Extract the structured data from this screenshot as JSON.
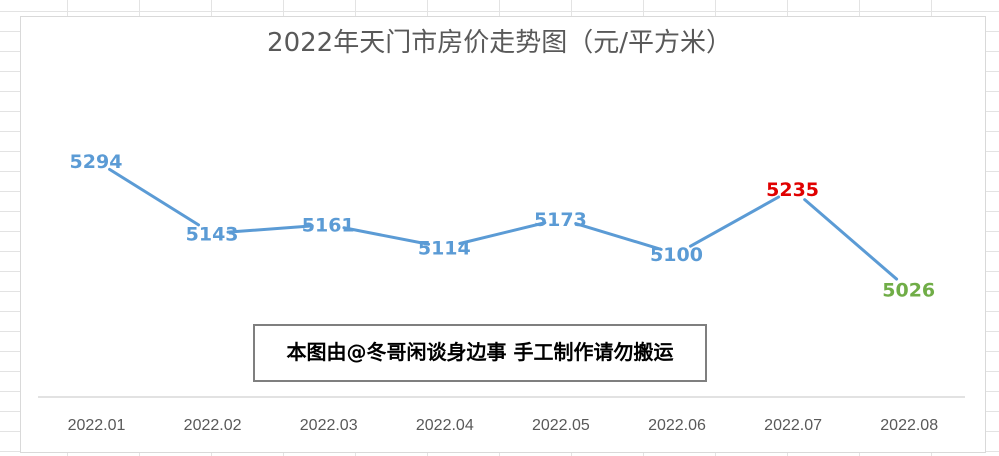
{
  "chart_data": {
    "type": "line",
    "title": "2022年天门市房价走势图（元/平方米）",
    "categories": [
      "2022.01",
      "2022.02",
      "2022.03",
      "2022.04",
      "2022.05",
      "2022.06",
      "2022.07",
      "2022.08"
    ],
    "series": [
      {
        "values": [
          5294,
          5143,
          5161,
          5114,
          5173,
          5100,
          5235,
          5026
        ]
      }
    ],
    "data_labels": [
      "5294",
      "5143",
      "5161",
      "5114",
      "5173",
      "5100",
      "5235",
      "5026"
    ],
    "ylim": [
      4900,
      5400
    ],
    "grid": false,
    "legend": "none",
    "colors": {
      "line": "#5b9bd5",
      "label_default": "#5b9bd5",
      "label_max_recent": "#e00000",
      "label_last": "#70ad47",
      "axis": "#d9d9d9",
      "tick_text": "#595959"
    },
    "label_color_keys": [
      "label_default",
      "label_default",
      "label_default",
      "label_default",
      "label_default",
      "label_default",
      "label_max_recent",
      "label_last"
    ]
  },
  "watermark": {
    "text": "本图由@冬哥闲谈身边事 手工制作请勿搬运"
  }
}
